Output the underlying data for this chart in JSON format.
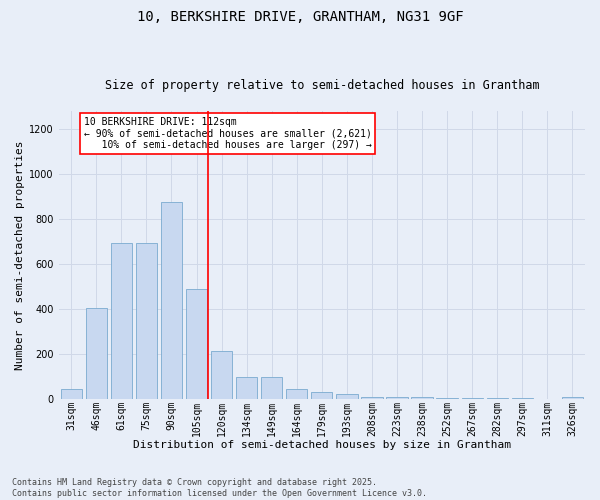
{
  "title": "10, BERKSHIRE DRIVE, GRANTHAM, NG31 9GF",
  "subtitle": "Size of property relative to semi-detached houses in Grantham",
  "xlabel": "Distribution of semi-detached houses by size in Grantham",
  "ylabel": "Number of semi-detached properties",
  "categories": [
    "31sqm",
    "46sqm",
    "61sqm",
    "75sqm",
    "90sqm",
    "105sqm",
    "120sqm",
    "134sqm",
    "149sqm",
    "164sqm",
    "179sqm",
    "193sqm",
    "208sqm",
    "223sqm",
    "238sqm",
    "252sqm",
    "267sqm",
    "282sqm",
    "297sqm",
    "311sqm",
    "326sqm"
  ],
  "values": [
    47,
    405,
    695,
    695,
    875,
    490,
    215,
    100,
    100,
    47,
    30,
    25,
    10,
    10,
    10,
    5,
    5,
    5,
    5,
    2,
    10
  ],
  "bar_color": "#c8d8f0",
  "bar_edge_color": "#7aaad0",
  "grid_color": "#d0d8e8",
  "vline_x": 5.45,
  "vline_color": "red",
  "annotation_text": "10 BERKSHIRE DRIVE: 112sqm\n← 90% of semi-detached houses are smaller (2,621)\n   10% of semi-detached houses are larger (297) →",
  "annotation_box_color": "white",
  "annotation_box_edge_color": "red",
  "ylim": [
    0,
    1280
  ],
  "yticks": [
    0,
    200,
    400,
    600,
    800,
    1000,
    1200
  ],
  "footnote": "Contains HM Land Registry data © Crown copyright and database right 2025.\nContains public sector information licensed under the Open Government Licence v3.0.",
  "bg_color": "#e8eef8",
  "plot_bg_color": "#e8eef8",
  "title_fontsize": 10,
  "subtitle_fontsize": 8.5,
  "ylabel_fontsize": 8,
  "xlabel_fontsize": 8,
  "tick_fontsize": 7,
  "annotation_fontsize": 7,
  "footnote_fontsize": 6
}
